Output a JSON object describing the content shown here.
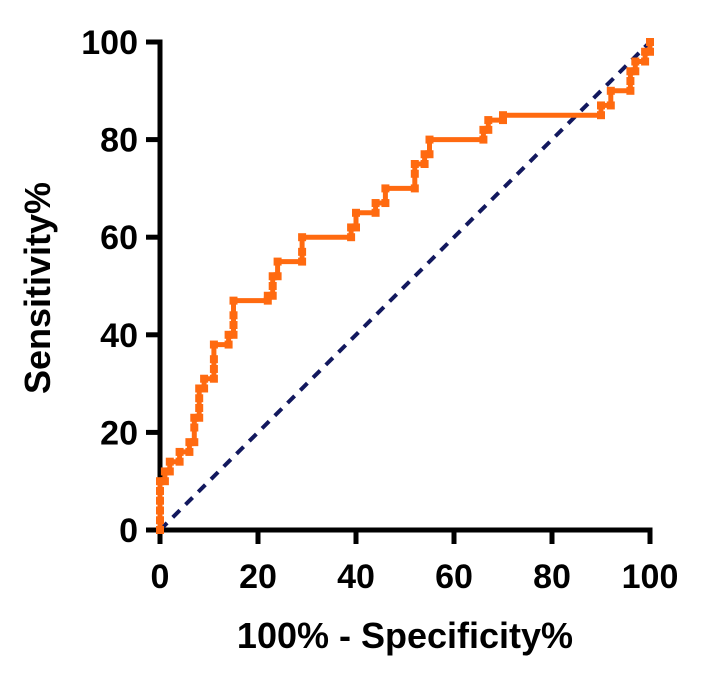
{
  "chart_data": {
    "type": "line",
    "title": "",
    "xlabel": "100% - Specificity%",
    "ylabel": "Sensitivity%",
    "xlim": [
      0,
      100
    ],
    "ylim": [
      0,
      100
    ],
    "x_ticks": [
      "0",
      "20",
      "40",
      "60",
      "80",
      "100"
    ],
    "y_ticks": [
      "0",
      "20",
      "40",
      "60",
      "80",
      "100"
    ],
    "x_tick_values": [
      0,
      20,
      40,
      60,
      80,
      100
    ],
    "y_tick_values": [
      0,
      20,
      40,
      60,
      80,
      100
    ],
    "series": [
      {
        "name": "ROC curve",
        "color": "#ff6a10",
        "style": "step-line-with-square-markers",
        "points": [
          [
            0,
            0
          ],
          [
            0,
            2
          ],
          [
            0,
            4
          ],
          [
            0,
            6
          ],
          [
            0,
            8
          ],
          [
            0,
            10
          ],
          [
            1,
            10
          ],
          [
            1,
            12
          ],
          [
            2,
            12
          ],
          [
            2,
            14
          ],
          [
            4,
            14
          ],
          [
            4,
            16
          ],
          [
            6,
            16
          ],
          [
            6,
            18
          ],
          [
            7,
            18
          ],
          [
            7,
            21
          ],
          [
            7,
            23
          ],
          [
            8,
            23
          ],
          [
            8,
            25
          ],
          [
            8,
            27
          ],
          [
            8,
            29
          ],
          [
            9,
            29
          ],
          [
            9,
            31
          ],
          [
            11,
            31
          ],
          [
            11,
            33
          ],
          [
            11,
            35
          ],
          [
            11,
            38
          ],
          [
            14,
            38
          ],
          [
            14,
            40
          ],
          [
            15,
            40
          ],
          [
            15,
            42
          ],
          [
            15,
            44
          ],
          [
            15,
            47
          ],
          [
            22,
            47
          ],
          [
            22,
            48
          ],
          [
            23,
            48
          ],
          [
            23,
            50
          ],
          [
            23,
            52
          ],
          [
            24,
            52
          ],
          [
            24,
            55
          ],
          [
            29,
            55
          ],
          [
            29,
            57
          ],
          [
            29,
            60
          ],
          [
            39,
            60
          ],
          [
            39,
            62
          ],
          [
            40,
            62
          ],
          [
            40,
            65
          ],
          [
            44,
            65
          ],
          [
            44,
            67
          ],
          [
            46,
            67
          ],
          [
            46,
            70
          ],
          [
            52,
            70
          ],
          [
            52,
            73
          ],
          [
            52,
            75
          ],
          [
            54,
            75
          ],
          [
            54,
            77
          ],
          [
            55,
            77
          ],
          [
            55,
            80
          ],
          [
            66,
            80
          ],
          [
            66,
            82
          ],
          [
            67,
            82
          ],
          [
            67,
            84
          ],
          [
            70,
            84
          ],
          [
            70,
            85
          ],
          [
            90,
            85
          ],
          [
            90,
            87
          ],
          [
            92,
            87
          ],
          [
            92,
            90
          ],
          [
            96,
            90
          ],
          [
            96,
            92
          ],
          [
            96,
            94
          ],
          [
            97,
            94
          ],
          [
            97,
            96
          ],
          [
            99,
            96
          ],
          [
            99,
            98
          ],
          [
            100,
            98
          ],
          [
            100,
            100
          ]
        ]
      },
      {
        "name": "Reference line",
        "color": "#12185e",
        "style": "dashed",
        "points": [
          [
            0,
            0
          ],
          [
            100,
            100
          ]
        ]
      }
    ],
    "grid": false,
    "legend": "none"
  }
}
